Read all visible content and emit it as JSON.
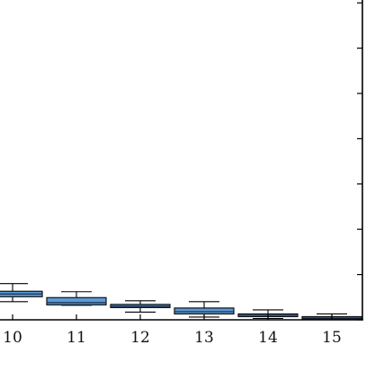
{
  "chart_data": {
    "type": "box",
    "categories": [
      "10",
      "11",
      "12",
      "13",
      "14",
      "15"
    ],
    "boxes": [
      {
        "x": 10,
        "whisker_low": 0.4,
        "q1": 0.51,
        "median": 0.57,
        "q3": 0.63,
        "whisker_high": 0.8
      },
      {
        "x": 11,
        "whisker_low": 0.32,
        "q1": 0.33,
        "median": 0.38,
        "q3": 0.49,
        "whisker_high": 0.62
      },
      {
        "x": 12,
        "whisker_low": 0.17,
        "q1": 0.27,
        "median": 0.3,
        "q3": 0.34,
        "whisker_high": 0.42
      },
      {
        "x": 13,
        "whisker_low": 0.06,
        "q1": 0.13,
        "median": 0.18,
        "q3": 0.26,
        "whisker_high": 0.4
      },
      {
        "x": 14,
        "whisker_low": 0.03,
        "q1": 0.07,
        "median": 0.1,
        "q3": 0.13,
        "whisker_high": 0.22
      },
      {
        "x": 15,
        "whisker_low": 0.01,
        "q1": 0.02,
        "median": 0.04,
        "q3": 0.07,
        "whisker_high": 0.13
      }
    ],
    "ylim": [
      0,
      7
    ],
    "y_ticks_shown_on": "right",
    "x_tick_labels_shown": true,
    "y_tick_labels_shown": false,
    "grid": false,
    "box_fill": "#5b9bd5",
    "box_edge": "#111111",
    "title": "",
    "xlabel": "",
    "ylabel": ""
  }
}
